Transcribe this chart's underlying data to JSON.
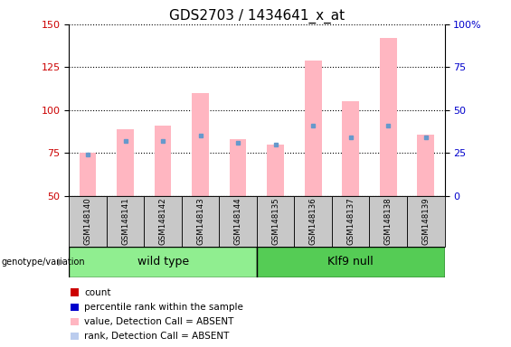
{
  "title": "GDS2703 / 1434641_x_at",
  "samples": [
    "GSM148140",
    "GSM148141",
    "GSM148142",
    "GSM148143",
    "GSM148144",
    "GSM148135",
    "GSM148136",
    "GSM148137",
    "GSM148138",
    "GSM148139"
  ],
  "pink_bar_top": [
    75,
    89,
    91,
    110,
    83,
    80,
    129,
    105,
    142,
    86
  ],
  "blue_dot_y": [
    74,
    82,
    82,
    85,
    81,
    80,
    91,
    84,
    91,
    84
  ],
  "ylim_left": [
    50,
    150
  ],
  "ylim_right": [
    0,
    100
  ],
  "yticks_left": [
    50,
    75,
    100,
    125,
    150
  ],
  "yticks_right": [
    0,
    25,
    50,
    75,
    100
  ],
  "bar_bottom": 50,
  "pink_color": "#FFB6C1",
  "blue_dot_color": "#6699CC",
  "axis_left_color": "#CC0000",
  "axis_right_color": "#0000CC",
  "title_fontsize": 11,
  "tick_fontsize": 8,
  "legend_colors": [
    "#CC0000",
    "#0000CC",
    "#FFB6C1",
    "#BBCCEE"
  ],
  "legend_labels": [
    "count",
    "percentile rank within the sample",
    "value, Detection Call = ABSENT",
    "rank, Detection Call = ABSENT"
  ],
  "wt_color": "#90EE90",
  "klf_color": "#55CC55",
  "gray_tick_bg": "#C8C8C8",
  "bar_width": 0.45
}
